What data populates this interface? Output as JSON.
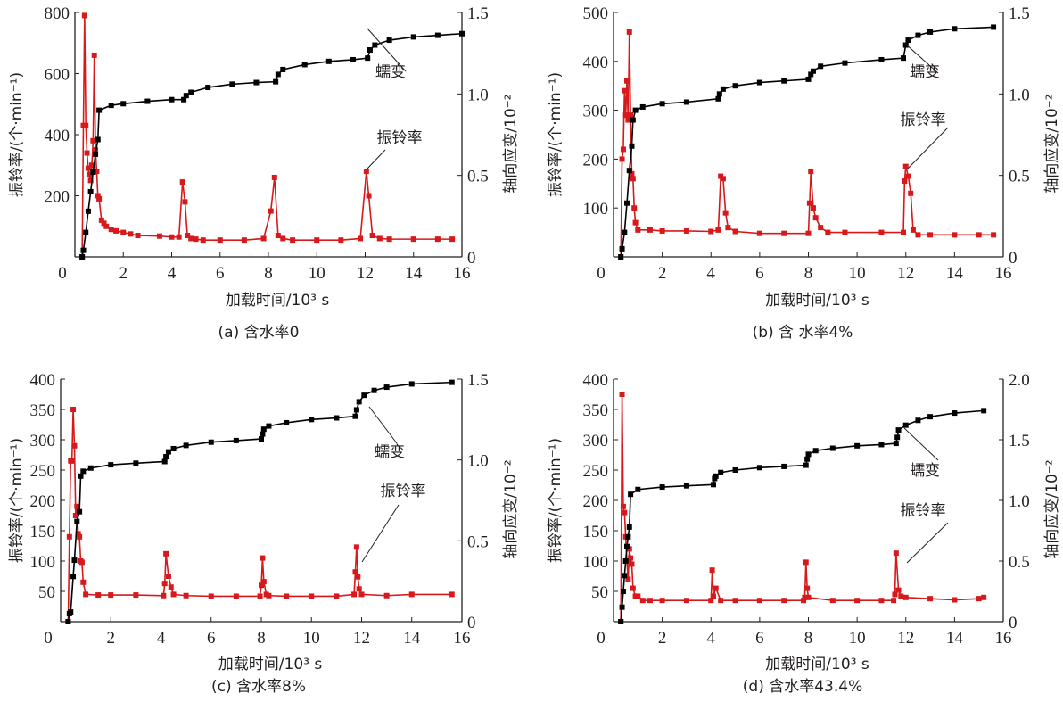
{
  "chart_data": [
    {
      "id": "a",
      "type": "line",
      "caption": "(a)  含水率0",
      "xlabel": "加载时间/10³ s",
      "ylabel_left": "振铃率/(个·min⁻¹)",
      "ylabel_right": "轴向应变/10⁻²",
      "xlim": [
        0,
        16
      ],
      "x_ticks": [
        0,
        2,
        4,
        6,
        8,
        10,
        12,
        14,
        16
      ],
      "ylim_left": [
        0,
        800
      ],
      "y_ticks_left": [
        200,
        400,
        600,
        800
      ],
      "y_tick_labels_left": [
        "200",
        "400",
        "600",
        "800"
      ],
      "ylim_right": [
        0,
        1.5
      ],
      "y_ticks_right": [
        0,
        0.5,
        1.0,
        1.5
      ],
      "y_tick_labels_right": [
        "0",
        "0.5",
        "1.0",
        "1.5"
      ],
      "annotations": [
        {
          "text": "蠕变",
          "points_to_series": "creep",
          "at_x": 12.2
        },
        {
          "text": "振铃率",
          "points_to_series": "ringing",
          "at_x": 12.1
        }
      ],
      "series": [
        {
          "name": "ringing",
          "axis": "left",
          "color": "#d7191c",
          "x": [
            0.3,
            0.35,
            0.4,
            0.45,
            0.5,
            0.55,
            0.6,
            0.65,
            0.7,
            0.75,
            0.8,
            0.85,
            0.9,
            0.95,
            1.0,
            1.1,
            1.2,
            1.3,
            1.5,
            1.7,
            2.0,
            2.3,
            2.6,
            3.5,
            4.0,
            4.3,
            4.45,
            4.55,
            4.65,
            4.8,
            5.0,
            5.3,
            6.0,
            7.0,
            7.8,
            8.1,
            8.25,
            8.4,
            8.6,
            9.0,
            10.0,
            11.0,
            11.8,
            12.05,
            12.15,
            12.3,
            12.6,
            13.0,
            14.0,
            15.0,
            15.6
          ],
          "y": [
            0,
            430,
            790,
            430,
            340,
            290,
            270,
            250,
            300,
            380,
            660,
            350,
            280,
            200,
            190,
            120,
            110,
            100,
            90,
            85,
            80,
            75,
            70,
            68,
            65,
            65,
            245,
            180,
            70,
            60,
            58,
            55,
            55,
            55,
            60,
            150,
            260,
            70,
            60,
            55,
            55,
            55,
            60,
            280,
            200,
            70,
            60,
            58,
            58,
            58,
            58
          ]
        },
        {
          "name": "creep",
          "axis": "right",
          "color": "#000000",
          "x": [
            0.3,
            0.35,
            0.45,
            0.55,
            0.65,
            0.75,
            0.85,
            0.95,
            1.0,
            1.5,
            2.0,
            3.0,
            4.0,
            4.5,
            4.6,
            4.8,
            5.5,
            6.5,
            7.5,
            8.3,
            8.4,
            8.6,
            9.5,
            10.5,
            11.5,
            12.1,
            12.2,
            12.4,
            13.0,
            14.0,
            15.0,
            16.0
          ],
          "y": [
            0,
            0.04,
            0.15,
            0.28,
            0.4,
            0.52,
            0.63,
            0.72,
            0.9,
            0.93,
            0.94,
            0.955,
            0.965,
            0.965,
            0.99,
            1.01,
            1.04,
            1.06,
            1.07,
            1.075,
            1.12,
            1.15,
            1.18,
            1.2,
            1.21,
            1.22,
            1.27,
            1.3,
            1.33,
            1.35,
            1.36,
            1.37
          ]
        }
      ]
    },
    {
      "id": "b",
      "type": "line",
      "caption": "(b)  含 水率4%",
      "xlabel": "加载时间/10³ s",
      "ylabel_left": "振铃率/(个·min⁻¹)",
      "ylabel_right": "轴向应变/10⁻²",
      "xlim": [
        0,
        16
      ],
      "x_ticks": [
        0,
        2,
        4,
        6,
        8,
        10,
        12,
        14,
        16
      ],
      "ylim_left": [
        0,
        500
      ],
      "y_ticks_left": [
        100,
        200,
        300,
        400,
        500
      ],
      "y_tick_labels_left": [
        "100",
        "200",
        "300",
        "400",
        "500"
      ],
      "ylim_right": [
        0,
        1.5
      ],
      "y_ticks_right": [
        0,
        0.5,
        1.0,
        1.5
      ],
      "y_tick_labels_right": [
        "0",
        "0.5",
        "1.0",
        "1.5"
      ],
      "annotations": [
        {
          "text": "蠕变",
          "points_to_series": "creep",
          "at_x": 12.0
        },
        {
          "text": "振铃率",
          "points_to_series": "ringing",
          "at_x": 12.1
        }
      ],
      "series": [
        {
          "name": "ringing",
          "axis": "left",
          "color": "#d7191c",
          "x": [
            0.3,
            0.35,
            0.4,
            0.45,
            0.5,
            0.55,
            0.6,
            0.65,
            0.7,
            0.75,
            0.8,
            0.85,
            0.9,
            1.0,
            1.5,
            2.0,
            3.0,
            4.0,
            4.3,
            4.4,
            4.5,
            4.6,
            4.7,
            5.0,
            6.0,
            7.0,
            8.0,
            8.05,
            8.1,
            8.2,
            8.3,
            8.5,
            8.8,
            9.5,
            11.0,
            11.9,
            11.95,
            12.0,
            12.1,
            12.2,
            12.3,
            12.5,
            13.0,
            14.0,
            15.0,
            15.6
          ],
          "y": [
            0,
            200,
            220,
            340,
            290,
            360,
            280,
            460,
            290,
            170,
            160,
            100,
            70,
            55,
            55,
            53,
            53,
            52,
            55,
            165,
            160,
            90,
            60,
            52,
            48,
            48,
            48,
            110,
            175,
            100,
            80,
            60,
            50,
            50,
            50,
            50,
            155,
            185,
            165,
            130,
            55,
            45,
            45,
            45,
            45,
            45
          ]
        },
        {
          "name": "creep",
          "axis": "right",
          "color": "#000000",
          "x": [
            0.3,
            0.35,
            0.45,
            0.55,
            0.65,
            0.75,
            0.8,
            0.9,
            1.2,
            2.0,
            3.0,
            4.3,
            4.35,
            4.5,
            5.0,
            6.0,
            7.0,
            8.0,
            8.1,
            8.2,
            8.5,
            9.5,
            11.0,
            11.9,
            12.0,
            12.1,
            12.5,
            13.0,
            14.0,
            15.6
          ],
          "y": [
            0,
            0.05,
            0.15,
            0.33,
            0.53,
            0.68,
            0.84,
            0.9,
            0.92,
            0.94,
            0.95,
            0.97,
            1.0,
            1.03,
            1.05,
            1.07,
            1.08,
            1.09,
            1.12,
            1.14,
            1.17,
            1.19,
            1.21,
            1.22,
            1.3,
            1.33,
            1.36,
            1.38,
            1.4,
            1.41
          ]
        }
      ]
    },
    {
      "id": "c",
      "type": "line",
      "caption": "(c)  含水率8%",
      "xlabel": "加载时间/10³ s",
      "ylabel_left": "振铃率/(个·min⁻¹)",
      "ylabel_right": "轴向应变/10⁻²",
      "xlim": [
        0,
        16
      ],
      "x_ticks": [
        0,
        2,
        4,
        6,
        8,
        10,
        12,
        14,
        16
      ],
      "ylim_left": [
        0,
        400
      ],
      "y_ticks_left": [
        50,
        100,
        150,
        200,
        250,
        300,
        350,
        400
      ],
      "y_tick_labels_left": [
        "50",
        "100",
        "150",
        "200",
        "250",
        "300",
        "350",
        "400"
      ],
      "ylim_right": [
        0,
        1.5
      ],
      "y_ticks_right": [
        0,
        0.5,
        1.0,
        1.5
      ],
      "y_tick_labels_right": [
        "0",
        "0.5",
        "1.0",
        "1.5"
      ],
      "annotations": [
        {
          "text": "蠕变",
          "points_to_series": "creep",
          "at_x": 11.9
        },
        {
          "text": "振铃率",
          "points_to_series": "ringing",
          "at_x": 11.9
        }
      ],
      "series": [
        {
          "name": "ringing",
          "axis": "left",
          "color": "#d7191c",
          "x": [
            0.3,
            0.35,
            0.4,
            0.45,
            0.5,
            0.55,
            0.6,
            0.65,
            0.7,
            0.75,
            0.8,
            0.85,
            0.9,
            1.0,
            1.5,
            2.0,
            3.0,
            4.1,
            4.15,
            4.2,
            4.3,
            4.4,
            4.5,
            5.0,
            6.0,
            7.0,
            7.95,
            8.0,
            8.05,
            8.1,
            8.2,
            8.3,
            9.0,
            10.0,
            11.0,
            11.7,
            11.75,
            11.8,
            11.85,
            11.9,
            12.0,
            13.0,
            14.0,
            15.6
          ],
          "y": [
            0,
            140,
            265,
            265,
            350,
            290,
            175,
            190,
            145,
            140,
            100,
            98,
            65,
            45,
            44,
            44,
            44,
            43,
            63,
            112,
            75,
            57,
            45,
            43,
            42,
            42,
            42,
            60,
            105,
            66,
            45,
            43,
            42,
            42,
            42,
            45,
            82,
            123,
            74,
            54,
            45,
            43,
            45,
            45
          ]
        },
        {
          "name": "creep",
          "axis": "right",
          "color": "#000000",
          "x": [
            0.3,
            0.35,
            0.4,
            0.5,
            0.55,
            0.65,
            0.75,
            0.8,
            0.9,
            1.2,
            2.0,
            3.0,
            4.15,
            4.2,
            4.3,
            4.5,
            5.0,
            6.0,
            7.0,
            8.0,
            8.05,
            8.1,
            8.3,
            9.0,
            10.0,
            11.0,
            11.75,
            11.8,
            11.9,
            12.1,
            12.5,
            13.0,
            14.0,
            15.6
          ],
          "y": [
            0,
            0.05,
            0.06,
            0.28,
            0.38,
            0.62,
            0.68,
            0.9,
            0.93,
            0.95,
            0.97,
            0.98,
            0.99,
            1.02,
            1.05,
            1.07,
            1.09,
            1.11,
            1.12,
            1.13,
            1.16,
            1.19,
            1.21,
            1.23,
            1.25,
            1.26,
            1.27,
            1.31,
            1.36,
            1.4,
            1.43,
            1.45,
            1.47,
            1.48
          ]
        }
      ]
    },
    {
      "id": "d",
      "type": "line",
      "caption": "(d)  含水率43.4%",
      "xlabel": "加载时间/10³ s",
      "ylabel_left": "振铃率/(个·min⁻¹)",
      "ylabel_right": "轴向应变/10⁻²",
      "xlim": [
        0,
        16
      ],
      "x_ticks": [
        0,
        2,
        4,
        6,
        8,
        10,
        12,
        14,
        16
      ],
      "ylim_left": [
        0,
        400
      ],
      "y_ticks_left": [
        50,
        100,
        150,
        200,
        250,
        300,
        350,
        400
      ],
      "y_tick_labels_left": [
        "50",
        "100",
        "150",
        "200",
        "250",
        "300",
        "350",
        "400"
      ],
      "ylim_right": [
        0,
        2.0
      ],
      "y_ticks_right": [
        0,
        0.5,
        1.0,
        1.5,
        2.0
      ],
      "y_tick_labels_right": [
        "0",
        "0.5",
        "1.0",
        "1.5",
        "2.0"
      ],
      "annotations": [
        {
          "text": "蠕变",
          "points_to_series": "creep",
          "at_x": 11.7
        },
        {
          "text": "振铃率",
          "points_to_series": "ringing",
          "at_x": 11.6
        }
      ],
      "series": [
        {
          "name": "ringing",
          "axis": "left",
          "color": "#d7191c",
          "x": [
            0.3,
            0.35,
            0.4,
            0.45,
            0.5,
            0.55,
            0.6,
            0.65,
            0.7,
            0.75,
            0.8,
            0.9,
            1.0,
            1.2,
            1.5,
            2.0,
            3.0,
            4.0,
            4.05,
            4.1,
            4.2,
            4.4,
            5.0,
            6.0,
            7.0,
            7.8,
            7.85,
            7.9,
            7.95,
            8.0,
            9.0,
            10.0,
            11.0,
            11.5,
            11.55,
            11.6,
            11.7,
            11.8,
            12.0,
            13.0,
            14.0,
            15.0,
            15.2
          ],
          "y": [
            0,
            375,
            190,
            180,
            140,
            100,
            70,
            120,
            105,
            95,
            55,
            42,
            42,
            35,
            35,
            35,
            35,
            35,
            85,
            42,
            55,
            35,
            35,
            35,
            35,
            35,
            40,
            98,
            55,
            40,
            35,
            35,
            35,
            35,
            45,
            113,
            52,
            42,
            40,
            38,
            36,
            38,
            40
          ]
        },
        {
          "name": "creep",
          "axis": "right",
          "color": "#000000",
          "x": [
            0.3,
            0.35,
            0.4,
            0.45,
            0.5,
            0.55,
            0.6,
            0.65,
            0.7,
            1.0,
            2.0,
            3.0,
            4.1,
            4.15,
            4.2,
            4.4,
            5.0,
            6.0,
            7.0,
            7.9,
            7.95,
            8.0,
            8.3,
            9.0,
            10.0,
            11.0,
            11.6,
            11.65,
            11.7,
            12.0,
            12.5,
            13.0,
            14.0,
            15.2
          ],
          "y": [
            0,
            0.12,
            0.25,
            0.38,
            0.5,
            0.62,
            0.7,
            0.78,
            1.05,
            1.09,
            1.11,
            1.12,
            1.13,
            1.18,
            1.2,
            1.23,
            1.25,
            1.27,
            1.28,
            1.29,
            1.34,
            1.38,
            1.41,
            1.43,
            1.45,
            1.46,
            1.47,
            1.52,
            1.58,
            1.62,
            1.66,
            1.69,
            1.72,
            1.74
          ]
        }
      ]
    }
  ]
}
